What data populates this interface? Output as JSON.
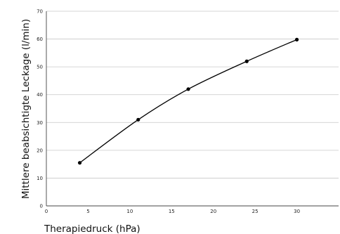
{
  "chart_data": {
    "type": "line",
    "title": "",
    "xlabel": "Therapiedruck (hPa)",
    "ylabel": "Mittlere beabsichtigte Leckage (l/min)",
    "xlim": [
      0,
      35
    ],
    "ylim": [
      0,
      70
    ],
    "xticks": [
      0,
      5,
      10,
      15,
      20,
      25,
      30
    ],
    "yticks": [
      0,
      10,
      20,
      30,
      40,
      50,
      60,
      70
    ],
    "grid": "horizontal",
    "legend": "none",
    "series": [
      {
        "x": [
          4,
          11,
          17,
          24,
          30
        ],
        "y": [
          15.5,
          31,
          42,
          52,
          59.8
        ]
      }
    ]
  }
}
